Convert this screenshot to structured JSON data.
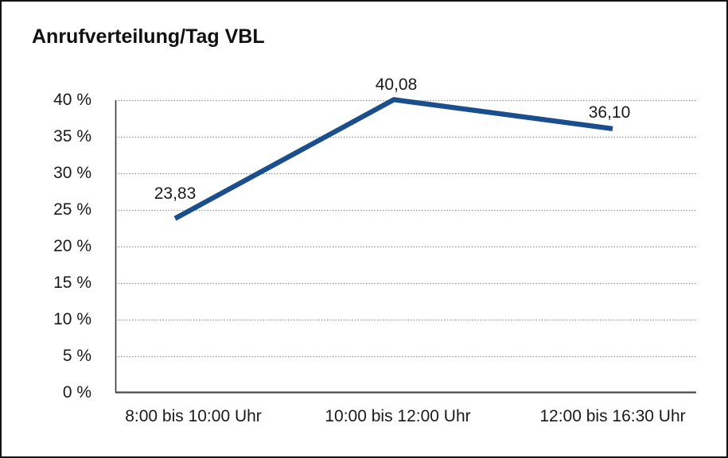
{
  "window": {
    "background_color": "#ffffff",
    "border_color": "#141414"
  },
  "chart_data": {
    "type": "line",
    "title": "Anrufverteilung/Tag VBL",
    "categories": [
      "8:00 bis 10:00 Uhr",
      "10:00 bis 12:00 Uhr",
      "12:00 bis 16:30 Uhr"
    ],
    "values": [
      23.83,
      40.08,
      36.1
    ],
    "value_labels": [
      "23,83",
      "40,08",
      "36,10"
    ],
    "xlabel": "",
    "ylabel": "",
    "ylim": [
      0,
      40
    ],
    "ytick_step": 5,
    "ytick_labels_top_to_bottom": [
      "40 %",
      "35 %",
      "30 %",
      "25 %",
      "20 %",
      "15 %",
      "10 %",
      "5 %",
      "0 %"
    ],
    "grid": "horizontal-dotted",
    "legend": "none",
    "colors": {
      "line": "#1b4e8c",
      "gridline": "#8c8c8c",
      "axis": "#3a3a3a",
      "text": "#1a1a1a"
    }
  }
}
